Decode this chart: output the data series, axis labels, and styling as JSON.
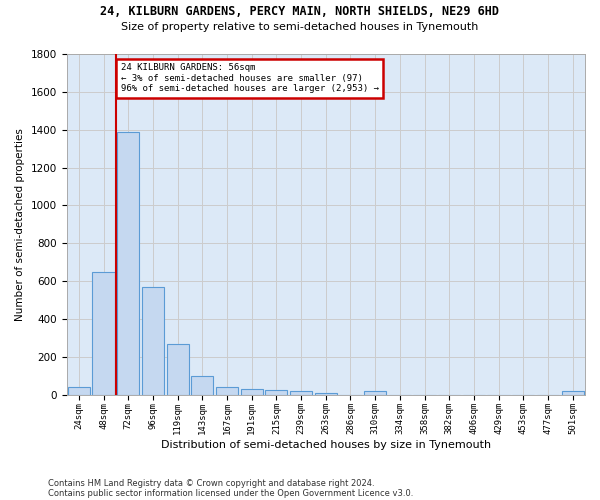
{
  "title1": "24, KILBURN GARDENS, PERCY MAIN, NORTH SHIELDS, NE29 6HD",
  "title2": "Size of property relative to semi-detached houses in Tynemouth",
  "xlabel": "Distribution of semi-detached houses by size in Tynemouth",
  "ylabel": "Number of semi-detached properties",
  "footer1": "Contains HM Land Registry data © Crown copyright and database right 2024.",
  "footer2": "Contains public sector information licensed under the Open Government Licence v3.0.",
  "bar_color": "#c5d8f0",
  "bar_edge_color": "#5b9bd5",
  "grid_color": "#cccccc",
  "background_color": "#dce9f7",
  "annotation_box_color": "#cc0000",
  "vline_color": "#cc0000",
  "categories": [
    "24sqm",
    "48sqm",
    "72sqm",
    "96sqm",
    "119sqm",
    "143sqm",
    "167sqm",
    "191sqm",
    "215sqm",
    "239sqm",
    "263sqm",
    "286sqm",
    "310sqm",
    "334sqm",
    "358sqm",
    "382sqm",
    "406sqm",
    "429sqm",
    "453sqm",
    "477sqm",
    "501sqm"
  ],
  "values": [
    40,
    650,
    1390,
    570,
    265,
    100,
    40,
    28,
    22,
    18,
    10,
    0,
    18,
    0,
    0,
    0,
    0,
    0,
    0,
    0,
    18
  ],
  "property_label": "24 KILBURN GARDENS: 56sqm",
  "pct_smaller": 3,
  "count_smaller": 97,
  "pct_larger": 96,
  "count_larger": 2953,
  "vline_x_index": 1.5,
  "ylim": [
    0,
    1800
  ],
  "yticks": [
    0,
    200,
    400,
    600,
    800,
    1000,
    1200,
    1400,
    1600,
    1800
  ]
}
